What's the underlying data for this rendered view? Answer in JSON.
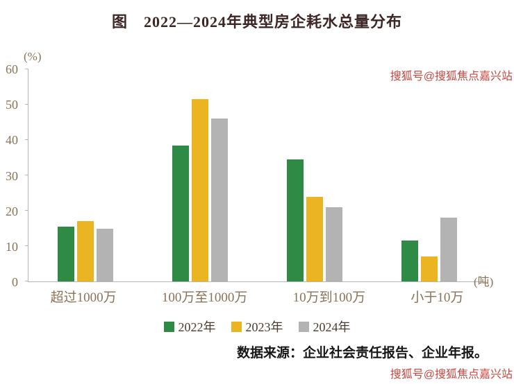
{
  "title": "图　2022—2024年典型房企耗水总量分布",
  "watermark": {
    "top": "搜狐号@搜狐焦点嘉兴站",
    "bottom": "搜狐号@搜狐焦点嘉兴站"
  },
  "source_note": "数据来源：企业社会责任报告、企业年报。",
  "chart_data": {
    "type": "bar",
    "title": "图　2022—2024年典型房企耗水总量分布",
    "xlabel": "",
    "ylabel": "",
    "unit_y": "(%)",
    "unit_x": "(吨)",
    "categories": [
      "超过1000万",
      "100万至1000万",
      "10万到100万",
      "小于10万"
    ],
    "series": [
      {
        "name": "2022年",
        "color": "#2f8a46",
        "values": [
          15.5,
          38.5,
          34.5,
          11.5
        ]
      },
      {
        "name": "2023年",
        "color": "#eab422",
        "values": [
          17,
          51.5,
          24,
          7
        ]
      },
      {
        "name": "2024年",
        "color": "#b3b3b3",
        "values": [
          15,
          46,
          21,
          18
        ]
      }
    ],
    "y_ticks": [
      0,
      10,
      20,
      30,
      40,
      50,
      60
    ],
    "ylim": [
      0,
      60
    ],
    "grid": false,
    "legend_position": "bottom"
  }
}
